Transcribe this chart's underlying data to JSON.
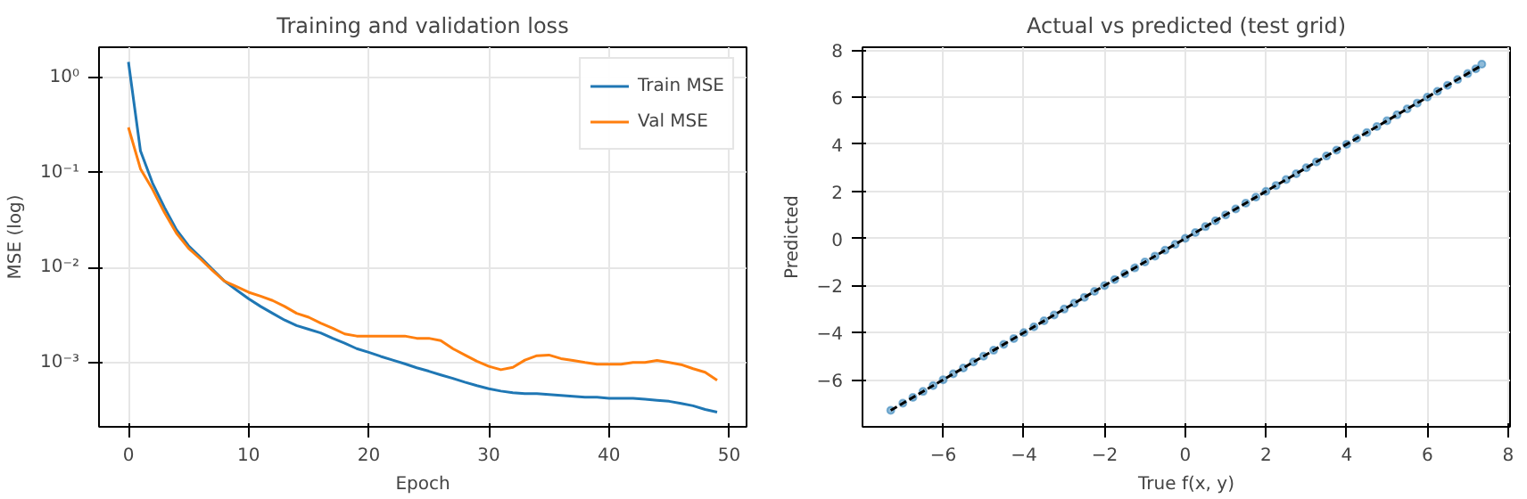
{
  "chart_data": [
    {
      "type": "line",
      "title": "Training and validation loss",
      "xlabel": "Epoch",
      "ylabel": "MSE (log)",
      "log": "y",
      "grid": true,
      "legend": "top right",
      "xlim": [
        -2.45,
        51.45
      ],
      "xticks": [
        0,
        10,
        20,
        30,
        40,
        50
      ],
      "ylim": [
        0.00021,
        2.1
      ],
      "yticks": [
        {
          "value": 1,
          "label": "10⁰"
        },
        {
          "value": 0.1,
          "label": "10⁻¹"
        },
        {
          "value": 0.01,
          "label": "10⁻²"
        },
        {
          "value": 0.001,
          "label": "10⁻³"
        }
      ],
      "x": [
        0,
        1,
        2,
        3,
        4,
        5,
        6,
        7,
        8,
        9,
        10,
        11,
        12,
        13,
        14,
        15,
        16,
        17,
        18,
        19,
        20,
        21,
        22,
        23,
        24,
        25,
        26,
        27,
        28,
        29,
        30,
        31,
        32,
        33,
        34,
        35,
        36,
        37,
        38,
        39,
        40,
        41,
        42,
        43,
        44,
        45,
        46,
        47,
        48,
        49
      ],
      "series": [
        {
          "name": "Train MSE",
          "color": "#1f77b4",
          "values": [
            1.47,
            0.17,
            0.078,
            0.043,
            0.025,
            0.017,
            0.0128,
            0.0096,
            0.0072,
            0.0058,
            0.0047,
            0.0039,
            0.0033,
            0.0028,
            0.00245,
            0.00224,
            0.00205,
            0.0018,
            0.0016,
            0.0014,
            0.00128,
            0.00116,
            0.00106,
            0.00097,
            0.00088,
            0.00081,
            0.00074,
            0.00068,
            0.00062,
            0.00057,
            0.00053,
            0.0005,
            0.00048,
            0.00047,
            0.00047,
            0.00046,
            0.00045,
            0.00044,
            0.00043,
            0.00043,
            0.00042,
            0.00042,
            0.00042,
            0.00041,
            0.0004,
            0.00039,
            0.00037,
            0.00035,
            0.00032,
            0.0003
          ]
        },
        {
          "name": "Val MSE",
          "color": "#ff7f0e",
          "values": [
            0.3,
            0.11,
            0.067,
            0.038,
            0.023,
            0.016,
            0.0123,
            0.0093,
            0.0072,
            0.0063,
            0.0055,
            0.005,
            0.0045,
            0.0039,
            0.0033,
            0.003,
            0.0026,
            0.0023,
            0.002,
            0.0019,
            0.0019,
            0.0019,
            0.0019,
            0.0019,
            0.0018,
            0.0018,
            0.0017,
            0.0014,
            0.0012,
            0.00103,
            0.00091,
            0.00084,
            0.00089,
            0.00106,
            0.00118,
            0.0012,
            0.0011,
            0.00105,
            0.001,
            0.00096,
            0.00096,
            0.00096,
            0.001,
            0.001,
            0.00105,
            0.001,
            0.00095,
            0.00086,
            0.00079,
            0.00065
          ]
        }
      ]
    },
    {
      "type": "scatter",
      "title": "Actual vs predicted (test grid)",
      "xlabel": "True f(x, y)",
      "ylabel": "Predicted",
      "grid": true,
      "legend": false,
      "xlim": [
        -8.0,
        8.05
      ],
      "xticks": [
        {
          "value": -6,
          "label": "−6"
        },
        {
          "value": -4,
          "label": "−4"
        },
        {
          "value": -2,
          "label": "−2"
        },
        0,
        2,
        4,
        6,
        8
      ],
      "ylim": [
        -8.0,
        8.12
      ],
      "yticks": [
        {
          "value": -6,
          "label": "−6"
        },
        {
          "value": -4,
          "label": "−4"
        },
        {
          "value": -2,
          "label": "−2"
        },
        0,
        2,
        4,
        6,
        8
      ],
      "series": [
        {
          "type": "scatter",
          "marker": "circle",
          "color": "#1f77b4",
          "x": [
            -7.3,
            -7.0,
            -6.75,
            -6.5,
            -6.25,
            -6.0,
            -5.75,
            -5.5,
            -5.25,
            -5.0,
            -4.75,
            -4.5,
            -4.25,
            -4.0,
            -3.75,
            -3.5,
            -3.25,
            -3.0,
            -2.75,
            -2.5,
            -2.25,
            -2.0,
            -1.75,
            -1.5,
            -1.25,
            -1.0,
            -0.75,
            -0.5,
            -0.25,
            0.0,
            0.25,
            0.5,
            0.75,
            1.0,
            1.25,
            1.5,
            1.75,
            2.0,
            2.25,
            2.5,
            2.75,
            3.0,
            3.25,
            3.5,
            3.75,
            4.0,
            4.25,
            4.5,
            4.75,
            5.0,
            5.25,
            5.5,
            5.75,
            6.0,
            6.25,
            6.5,
            6.75,
            7.0,
            7.2,
            7.35
          ],
          "values": [
            -7.3,
            -7.0,
            -6.75,
            -6.5,
            -6.25,
            -6.0,
            -5.75,
            -5.5,
            -5.25,
            -5.0,
            -4.75,
            -4.5,
            -4.25,
            -4.0,
            -3.75,
            -3.5,
            -3.25,
            -3.0,
            -2.75,
            -2.5,
            -2.25,
            -2.0,
            -1.75,
            -1.5,
            -1.25,
            -1.0,
            -0.75,
            -0.5,
            -0.25,
            0.0,
            0.25,
            0.5,
            0.75,
            1.0,
            1.25,
            1.5,
            1.75,
            2.0,
            2.25,
            2.5,
            2.75,
            3.0,
            3.25,
            3.5,
            3.75,
            4.0,
            4.25,
            4.5,
            4.75,
            5.0,
            5.25,
            5.5,
            5.75,
            6.0,
            6.25,
            6.5,
            6.75,
            7.0,
            7.2,
            7.4
          ]
        },
        {
          "type": "line",
          "color": "#000000",
          "line_style": "dashed",
          "marker": "none",
          "x": [
            -7.3,
            7.35
          ],
          "values": [
            -7.3,
            7.35
          ]
        }
      ]
    }
  ]
}
